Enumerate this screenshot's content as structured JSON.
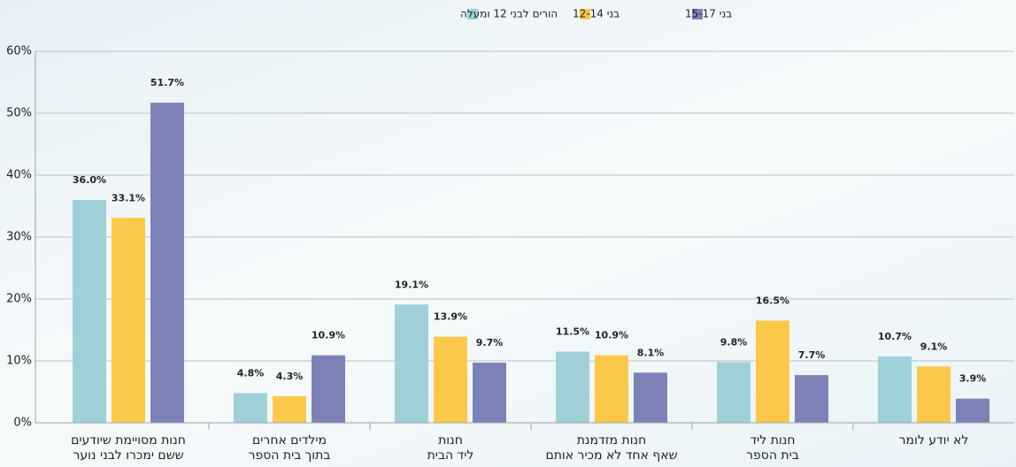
{
  "chart_data": {
    "type": "bar",
    "categories": [
      "חנות מסויימת שיודעים\nששם ימכרו לבני נוער",
      "מילדים אחרים\nבתוך בית הספר",
      "חנות\nליד הבית",
      "חנות מזדמנת\nשאף אחד לא מכיר אותם",
      "חנות ליד\nבית הספר",
      "לא יודע לומר"
    ],
    "series": [
      {
        "name": "הורים לבני 12 ומעלה",
        "color": "#9fd0d8",
        "values": [
          36.0,
          4.8,
          19.1,
          11.5,
          9.8,
          10.7
        ],
        "value_labels": [
          "36.0%",
          "4.8%",
          "19.1%",
          "11.5%",
          "9.8%",
          "10.7%"
        ]
      },
      {
        "name": "בני 12-14",
        "color": "#fcc84a",
        "values": [
          33.1,
          4.3,
          13.9,
          10.9,
          16.5,
          9.1
        ],
        "value_labels": [
          "33.1%",
          "4.3%",
          "13.9%",
          "10.9%",
          "16.5%",
          "9.1%"
        ]
      },
      {
        "name": "בני 15-17",
        "color": "#7c82b6",
        "values": [
          51.7,
          10.9,
          9.7,
          8.1,
          7.7,
          3.9
        ],
        "value_labels": [
          "51.7%",
          "10.9%",
          "9.7%",
          "8.1%",
          "7.7%",
          "3.9%"
        ]
      }
    ],
    "ylim": [
      0,
      60
    ],
    "yticks": [
      {
        "value": 0,
        "label": "0%"
      },
      {
        "value": 10,
        "label": "10%"
      },
      {
        "value": 20,
        "label": "20%"
      },
      {
        "value": 30,
        "label": "30%"
      },
      {
        "value": 40,
        "label": "40%"
      },
      {
        "value": 50,
        "label": "50%"
      },
      {
        "value": 60,
        "label": "60%"
      }
    ],
    "grid": true
  }
}
